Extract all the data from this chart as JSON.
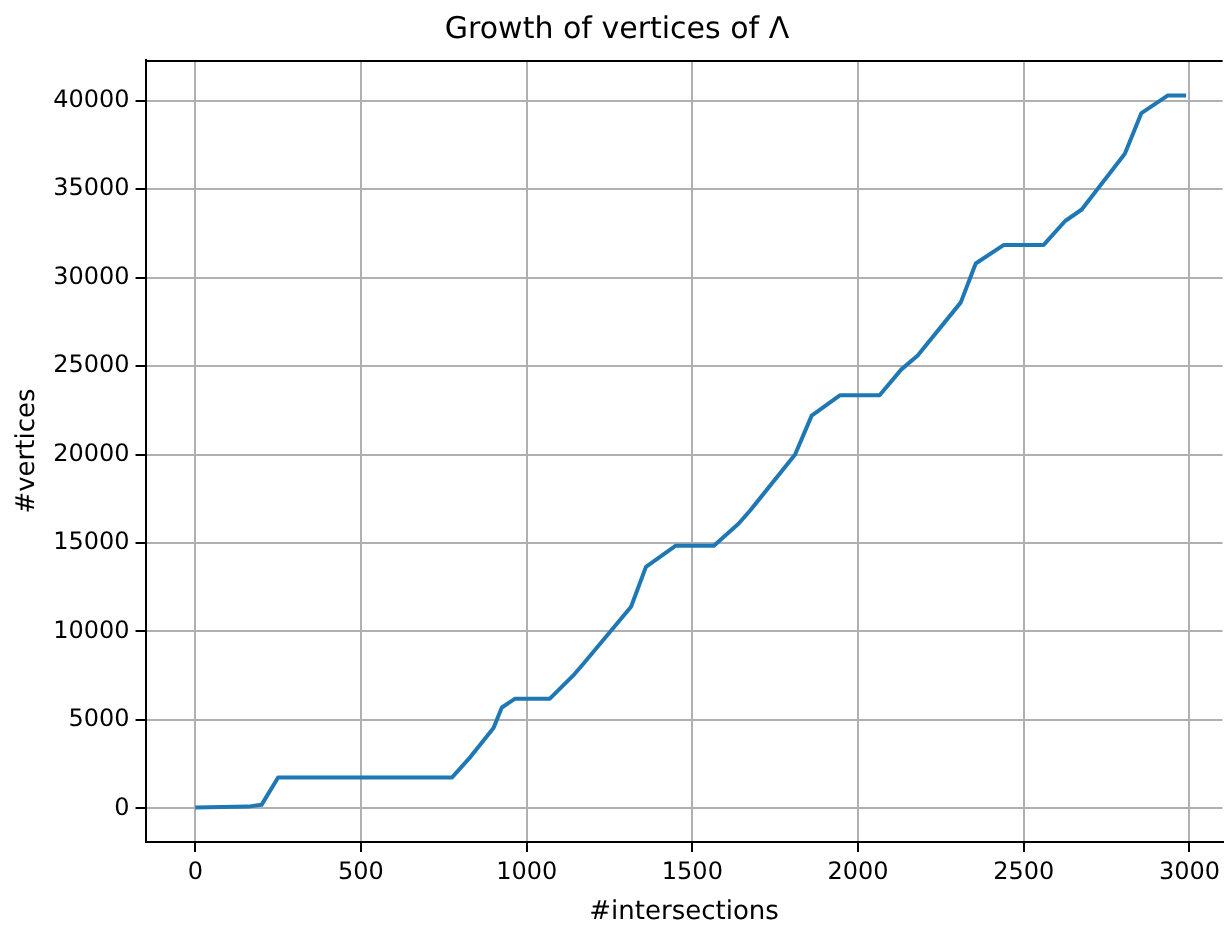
{
  "chart_data": {
    "type": "line",
    "title": "Growth of vertices of Λ",
    "xlabel": "#intersections",
    "ylabel": "#vertices",
    "x": [
      0,
      160,
      200,
      250,
      775,
      830,
      900,
      925,
      965,
      1070,
      1140,
      1170,
      1315,
      1360,
      1450,
      1565,
      1640,
      1675,
      1810,
      1860,
      1945,
      2065,
      2130,
      2180,
      2310,
      2355,
      2440,
      2560,
      2625,
      2675,
      2805,
      2855,
      2935,
      2990
    ],
    "series": [
      {
        "color": "#1f77b4",
        "values": [
          50,
          100,
          200,
          1750,
          1750,
          2900,
          4550,
          5700,
          6200,
          6200,
          7500,
          8150,
          11400,
          13650,
          14850,
          14850,
          16100,
          16850,
          20000,
          22200,
          23350,
          23350,
          24800,
          25600,
          28600,
          30800,
          31850,
          31850,
          33200,
          33850,
          37000,
          39300,
          40300,
          40300
        ]
      }
    ],
    "xlim": [
      -150,
      3100
    ],
    "ylim": [
      -1900,
      42300
    ],
    "xticks": [
      0,
      500,
      1000,
      1500,
      2000,
      2500,
      3000
    ],
    "yticks": [
      0,
      5000,
      10000,
      15000,
      20000,
      25000,
      30000,
      35000,
      40000
    ],
    "grid": true,
    "legend": false,
    "marker": "none",
    "line_style": "solid"
  }
}
